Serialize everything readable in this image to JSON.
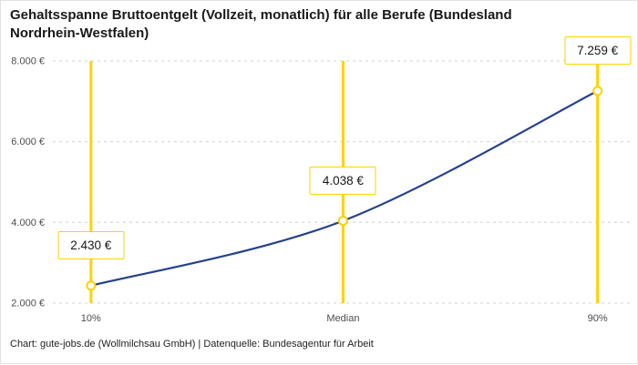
{
  "title": "Gehaltsspanne Bruttoentgelt (Vollzeit, monatlich) für alle Berufe (Bundesland Nordrhein-Westfalen)",
  "footer": "Chart: gute-jobs.de (Wollmilchsau GmbH) | Datenquelle: Bundesagentur für Arbeit",
  "chart_data": {
    "type": "line",
    "categories": [
      "10%",
      "Median",
      "90%"
    ],
    "values": [
      2430,
      4038,
      7259
    ],
    "value_labels": [
      "2.430 €",
      "4.038 €",
      "7.259 €"
    ],
    "title": "Gehaltsspanne Bruttoentgelt (Vollzeit, monatlich) für alle Berufe (Bundesland Nordrhein-Westfalen)",
    "xlabel": "",
    "ylabel": "",
    "ylim": [
      2000,
      8000
    ],
    "yticks": [
      2000,
      4000,
      6000,
      8000
    ],
    "ytick_labels": [
      "2.000 €",
      "4.000 €",
      "6.000 €",
      "8.000 €"
    ],
    "grid": "dashed-horizontal",
    "legend": "none",
    "colors": {
      "line": "#24418e",
      "accent": "#ffd200",
      "text": "#191919",
      "tick_text": "#4d4d4d",
      "grid": "#d0d0d0"
    }
  }
}
